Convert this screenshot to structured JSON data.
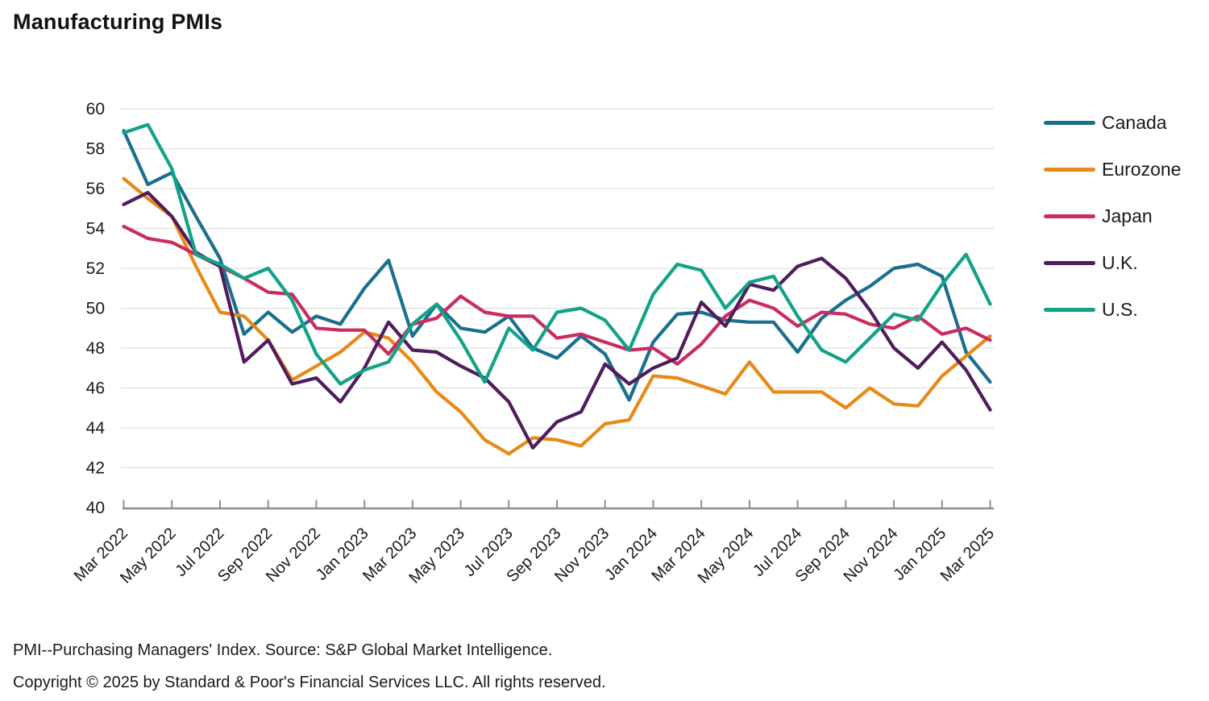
{
  "title": "Manufacturing PMIs",
  "footer": {
    "line1": "PMI--Purchasing Managers' Index. Source: S&P Global Market Intelligence.",
    "line2": "Copyright © 2025 by Standard & Poor's Financial Services LLC. All rights reserved."
  },
  "colors": {
    "grid": "#d9d9d9",
    "axis": "#8f8f8f",
    "text": "#1a1a1a"
  },
  "chart_data": {
    "type": "line",
    "title": "Manufacturing PMIs",
    "xlabel": "",
    "ylabel": "",
    "ylim": [
      40,
      60
    ],
    "ytick_step": 2,
    "x_tick_every": 2,
    "grid": true,
    "legend_position": "right",
    "x": [
      "Mar 2022",
      "Apr 2022",
      "May 2022",
      "Jun 2022",
      "Jul 2022",
      "Aug 2022",
      "Sep 2022",
      "Oct 2022",
      "Nov 2022",
      "Dec 2022",
      "Jan 2023",
      "Feb 2023",
      "Mar 2023",
      "Apr 2023",
      "May 2023",
      "Jun 2023",
      "Jul 2023",
      "Aug 2023",
      "Sep 2023",
      "Oct 2023",
      "Nov 2023",
      "Dec 2023",
      "Jan 2024",
      "Feb 2024",
      "Mar 2024",
      "Apr 2024",
      "May 2024",
      "Jun 2024",
      "Jul 2024",
      "Aug 2024",
      "Sep 2024",
      "Oct 2024",
      "Nov 2024",
      "Dec 2024",
      "Jan 2025",
      "Feb 2025",
      "Mar 2025"
    ],
    "series": [
      {
        "name": "Canada",
        "color": "#1b6f8e",
        "values": [
          58.9,
          56.2,
          56.8,
          54.6,
          52.5,
          48.7,
          49.8,
          48.8,
          49.6,
          49.2,
          51.0,
          52.4,
          48.6,
          50.2,
          49.0,
          48.8,
          49.6,
          48.0,
          47.5,
          48.6,
          47.7,
          45.4,
          48.3,
          49.7,
          49.8,
          49.4,
          49.3,
          49.3,
          47.8,
          49.5,
          50.4,
          51.1,
          52.0,
          52.2,
          51.6,
          47.8,
          46.3
        ]
      },
      {
        "name": "Eurozone",
        "color": "#e78a17",
        "values": [
          56.5,
          55.5,
          54.6,
          52.1,
          49.8,
          49.6,
          48.4,
          46.4,
          47.1,
          47.8,
          48.8,
          48.5,
          47.3,
          45.8,
          44.8,
          43.4,
          42.7,
          43.5,
          43.4,
          43.1,
          44.2,
          44.4,
          46.6,
          46.5,
          46.1,
          45.7,
          47.3,
          45.8,
          45.8,
          45.8,
          45.0,
          46.0,
          45.2,
          45.1,
          46.6,
          47.6,
          48.6
        ]
      },
      {
        "name": "Japan",
        "color": "#ca2c60",
        "values": [
          54.1,
          53.5,
          53.3,
          52.7,
          52.1,
          51.5,
          50.8,
          50.7,
          49.0,
          48.9,
          48.9,
          47.7,
          49.2,
          49.5,
          50.6,
          49.8,
          49.6,
          49.6,
          48.5,
          48.7,
          48.3,
          47.9,
          48.0,
          47.2,
          48.2,
          49.6,
          50.4,
          50.0,
          49.1,
          49.8,
          49.7,
          49.2,
          49.0,
          49.6,
          48.7,
          49.0,
          48.4
        ]
      },
      {
        "name": "U.K.",
        "color": "#4f1c5c",
        "values": [
          55.2,
          55.8,
          54.6,
          52.8,
          52.1,
          47.3,
          48.4,
          46.2,
          46.5,
          45.3,
          47.0,
          49.3,
          47.9,
          47.8,
          47.1,
          46.5,
          45.3,
          43.0,
          44.3,
          44.8,
          47.2,
          46.2,
          47.0,
          47.5,
          50.3,
          49.1,
          51.2,
          50.9,
          52.1,
          52.5,
          51.5,
          49.9,
          48.0,
          47.0,
          48.3,
          46.9,
          44.9
        ]
      },
      {
        "name": "U.S.",
        "color": "#12a287",
        "values": [
          58.8,
          59.2,
          57.0,
          52.7,
          52.2,
          51.5,
          52.0,
          50.4,
          47.7,
          46.2,
          46.9,
          47.3,
          49.2,
          50.2,
          48.4,
          46.3,
          49.0,
          47.9,
          49.8,
          50.0,
          49.4,
          47.9,
          50.7,
          52.2,
          51.9,
          50.0,
          51.3,
          51.6,
          49.6,
          47.9,
          47.3,
          48.5,
          49.7,
          49.4,
          51.2,
          52.7,
          50.2
        ]
      }
    ]
  }
}
